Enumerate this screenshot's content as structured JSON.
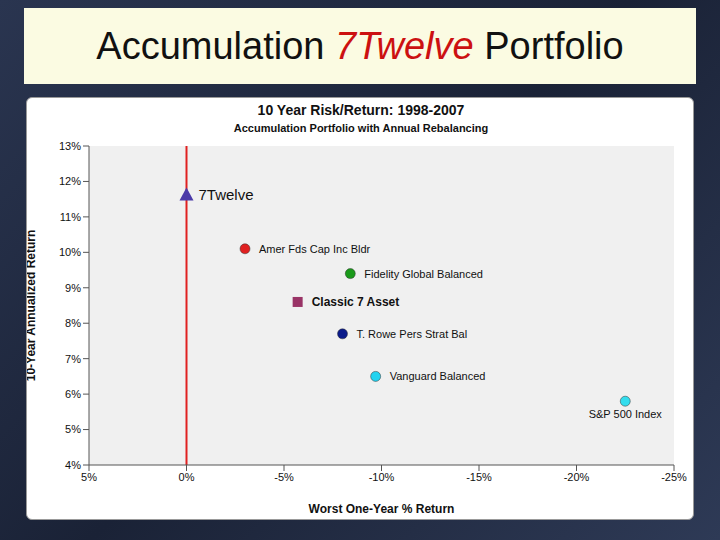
{
  "slide": {
    "title": "Accumulation 7Twelve Portfolio",
    "highlight": "7Twelve"
  },
  "chart_data": {
    "type": "scatter",
    "title": "10 Year Risk/Return: 1998-2007",
    "subtitle": "Accumulation Portfolio with Annual Rebalancing",
    "x_label": "Worst One-Year % Return",
    "y_label": "10-Year Annualized Return",
    "xlim": [
      5,
      -25
    ],
    "xticks": [
      {
        "value": 5,
        "label": "5%"
      },
      {
        "value": 0,
        "label": "0%"
      },
      {
        "value": -5,
        "label": "-5%"
      },
      {
        "value": -10,
        "label": "-10%"
      },
      {
        "value": -15,
        "label": "-15%"
      },
      {
        "value": -20,
        "label": "-20%"
      },
      {
        "value": -25,
        "label": "-25%"
      }
    ],
    "ylim": [
      4,
      13
    ],
    "yticks": [
      {
        "value": 4,
        "label": "4%"
      },
      {
        "value": 5,
        "label": "5%"
      },
      {
        "value": 6,
        "label": "6%"
      },
      {
        "value": 7,
        "label": "7%"
      },
      {
        "value": 8,
        "label": "8%"
      },
      {
        "value": 9,
        "label": "9%"
      },
      {
        "value": 10,
        "label": "10%"
      },
      {
        "value": 11,
        "label": "11%"
      },
      {
        "value": 12,
        "label": "12%"
      },
      {
        "value": 13,
        "label": "13%"
      }
    ],
    "grid": false,
    "reference_line": {
      "x": 0,
      "color": "#e02020"
    },
    "series": [
      {
        "name": "7Twelve",
        "color": "#4b3aa8",
        "marker": "triangle",
        "x": [
          0
        ],
        "values": [
          11.6
        ]
      },
      {
        "name": "Amer Fds Cap Inc Bldr",
        "color": "#e02020",
        "marker": "circle",
        "x": [
          -3.0
        ],
        "values": [
          10.1
        ]
      },
      {
        "name": "Fidelity Global Balanced",
        "color": "#1a9a1a",
        "marker": "circle",
        "x": [
          -8.4
        ],
        "values": [
          9.4
        ]
      },
      {
        "name": "Classic 7 Asset",
        "color": "#993366",
        "marker": "square",
        "x": [
          -5.7
        ],
        "values": [
          8.6
        ]
      },
      {
        "name": "T. Rowe Pers Strat Bal",
        "color": "#0a1a8a",
        "marker": "circle",
        "x": [
          -8.0
        ],
        "values": [
          7.7
        ]
      },
      {
        "name": "Vanguard Balanced",
        "color": "#22d3f0",
        "marker": "circle",
        "x": [
          -9.7
        ],
        "values": [
          6.5
        ]
      },
      {
        "name": "S&P 500 Index",
        "color": "#33ddee",
        "marker": "circle",
        "x": [
          -22.5
        ],
        "values": [
          5.8
        ]
      }
    ]
  }
}
